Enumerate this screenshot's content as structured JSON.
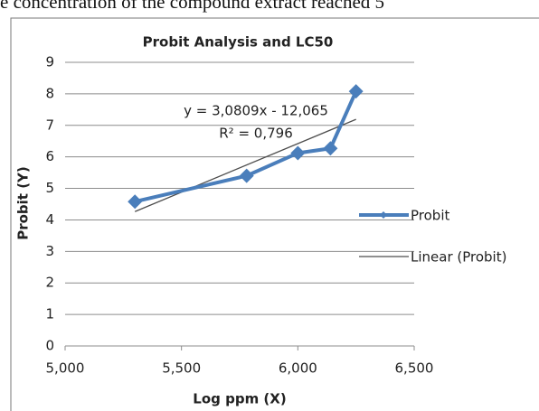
{
  "caption_fragment": "e concentration of the compound extract reached 5",
  "chart_data": {
    "type": "line",
    "title": "Probit Analysis and LC50",
    "x_label": "Log ppm (X)",
    "y_label": "Probit (Y)",
    "xlim": [
      5,
      6.5
    ],
    "xticks": [
      {
        "value": 5,
        "label": "5,000"
      },
      {
        "value": 5.5,
        "label": "5,500"
      },
      {
        "value": 6,
        "label": "6,000"
      },
      {
        "value": 6.5,
        "label": "6,500"
      }
    ],
    "ylim": [
      0,
      9
    ],
    "yticks": [
      0,
      1,
      2,
      3,
      4,
      5,
      6,
      7,
      8,
      9
    ],
    "grid": true,
    "legend": "right",
    "series": [
      {
        "name": "Probit",
        "color": "#4a7ebb",
        "marker": "diamond",
        "x": [
          5.3,
          5.78,
          6.0,
          6.14,
          6.25
        ],
        "values": [
          4.58,
          5.4,
          6.12,
          6.27,
          8.08
        ]
      },
      {
        "name": "Linear (Probit)",
        "color": "#4d4d4d",
        "x": [
          5.3,
          6.25
        ],
        "values": [
          4.264,
          7.191
        ]
      }
    ],
    "annotations": [
      "y = 3,0809x - 12,065",
      "R² = 0,796"
    ]
  }
}
